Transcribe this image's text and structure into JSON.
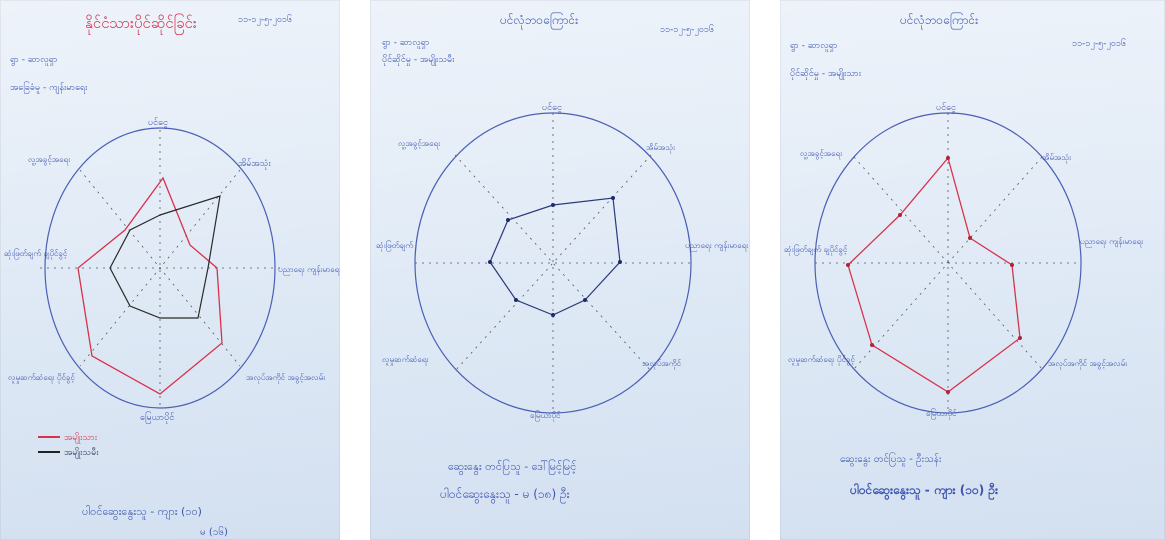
{
  "sheets": [
    {
      "id": "sheet1",
      "title": "နိုင်ငံသားပိုင်ဆိုင်ခြင်း",
      "date": "၁၁-၁၂-၅-၂၀၁၆",
      "line1": "ရွာ - ဆာလူရှာ",
      "line2": "အခြေခံမူ - ကျန်းမာရေး",
      "top_label": "ပင်ငွေ",
      "upper_right_label": "အိမ်အသုံး",
      "right_label": "ပညာရေး ကျန်းမာရေး",
      "lower_right_label": "အလုပ်အကိုင် အခွင့်အလမ်း",
      "bottom_label": "မြေယာပိုင်",
      "lower_left_label": "လူမှုဆက်ဆံရေး ပိုင်ခွင့်",
      "left_label": "ဆုံးဖြတ်ချက် ချပိုင်ခွင့်",
      "upper_left_label": "လူ့အခွင့်အရေး",
      "legend_red": "အမျိုးသား",
      "legend_black": "အမျိုးသမီး",
      "footer1": "ပါဝင်ဆွေးနွေးသူ - ကျား (၁၀)",
      "footer2": "မ (၁၆)"
    },
    {
      "id": "sheet2",
      "title": "ပင်လုံဘဝကြောင်း",
      "date": "၁၁-၁၂-၅-၂၀၁၆",
      "line1": "ရွာ - ဆာလူရှာ",
      "line2": "ပိုင်ဆိုင်မှု - အမျိုးသမီး",
      "top_label": "ပင်ငွေ",
      "upper_right_label": "အိမ်အသုံး",
      "right_label": "ပညာရေး ကျန်းမာရေး",
      "lower_right_label": "အလုပ်အကိုင်",
      "bottom_label": "မြေယာပိုင်",
      "lower_left_label": "လူမှုဆက်ဆံရေး",
      "left_label": "ဆုံးဖြတ်ချက်",
      "upper_left_label": "လူ့အခွင့်အရေး",
      "footer1": "ဆွေးနွေး တင်ပြသူ - ဒေါ်မြင့်မြင့်",
      "footer2": "ပါဝင်ဆွေးနွေးသူ - မ (၁၈) ဦး"
    },
    {
      "id": "sheet3",
      "title": "ပင်လုံဘဝကြောင်း",
      "date": "၁၁-၁၂-၅-၂၀၁၆",
      "line1": "ရွာ - ဆာလူရှာ",
      "line2": "ပိုင်ဆိုင်မှု - အမျိုးသား",
      "top_label": "ပင်ငွေ",
      "upper_right_label": "အိမ်အသုံး",
      "right_label": "ပညာရေး ကျန်းမာရေး",
      "lower_right_label": "အလုပ်အကိုင် အခွင့်အလမ်း",
      "bottom_label": "မြေယာပိုင်",
      "lower_left_label": "လူမှုဆက်ဆံရေး ပိုင်ခွင့်",
      "left_label": "ဆုံးဖြတ်ချက် ချပိုင်ခွင့်",
      "upper_left_label": "လူ့အခွင့်အရေး",
      "footer1": "ဆွေးနွေး တင်ပြသူ - ဦးသန်း",
      "footer2": "ပါဝင်ဆွေးနွေးသူ - ကျား (၁၀) ဦး"
    }
  ]
}
